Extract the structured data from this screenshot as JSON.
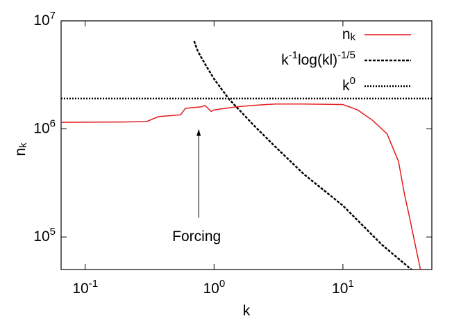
{
  "chart_data": {
    "type": "line",
    "xlabel": "k",
    "ylabel": "n_k",
    "xscale": "log",
    "yscale": "log",
    "xlim": [
      0.065,
      49
    ],
    "ylim": [
      50000,
      10000000
    ],
    "xticks": [
      {
        "value": 0.1,
        "label": "10^-1"
      },
      {
        "value": 1,
        "label": "10^0"
      },
      {
        "value": 10,
        "label": "10^1"
      }
    ],
    "yticks": [
      {
        "value": 100000,
        "label": "10^5"
      },
      {
        "value": 1000000,
        "label": "10^6"
      },
      {
        "value": 10000000,
        "label": "10^7"
      }
    ],
    "legend": "upper right",
    "series": [
      {
        "name": "n_k",
        "color": "#e41a1c",
        "dash": "solid",
        "x": [
          0.065,
          0.2,
          0.3,
          0.37,
          0.55,
          0.6,
          0.8,
          0.85,
          0.95,
          1.0,
          1.5,
          2,
          3,
          5,
          10,
          13,
          17,
          22,
          27,
          30,
          33,
          36,
          40
        ],
        "y": [
          1150000,
          1160000,
          1170000,
          1300000,
          1350000,
          1550000,
          1600000,
          1650000,
          1450000,
          1500000,
          1600000,
          1650000,
          1700000,
          1700000,
          1680000,
          1500000,
          1200000,
          900000,
          500000,
          250000,
          150000,
          90000,
          50000
        ]
      },
      {
        "name": "k^-1log(kl)^-1/5",
        "color": "#000000",
        "dash": "dashed",
        "x": [
          0.7,
          0.75,
          0.85,
          1,
          1.3,
          2,
          3,
          5,
          10,
          20,
          34
        ],
        "y": [
          6500000,
          5200000,
          4000000,
          2900000,
          1900000,
          1100000,
          680000,
          380000,
          195000,
          85000,
          50000
        ]
      },
      {
        "name": "k^0",
        "color": "#000000",
        "dash": "dotted",
        "x": [
          0.065,
          49
        ],
        "y": [
          1910000,
          1910000
        ]
      }
    ],
    "annotations": [
      {
        "text": "Forcing",
        "x": 0.76,
        "y": 1000000
      }
    ]
  }
}
